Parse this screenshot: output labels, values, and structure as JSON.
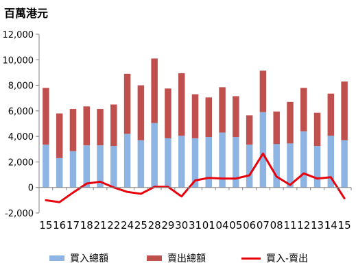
{
  "chart_data": {
    "type": "bar",
    "subtype": "stacked-bar-with-line",
    "unit_label": "百萬港元",
    "categories": [
      "15",
      "16",
      "17",
      "18",
      "21",
      "22",
      "24",
      "25",
      "28",
      "29",
      "30",
      "31",
      "01",
      "04",
      "05",
      "06",
      "07",
      "08",
      "11",
      "12",
      "13",
      "14",
      "15"
    ],
    "series": [
      {
        "name": "買入總額",
        "type": "bar",
        "color": "#8DB4E2",
        "values": [
          3350,
          2300,
          2850,
          3300,
          3300,
          3250,
          4200,
          3700,
          5050,
          3850,
          4050,
          3850,
          3950,
          4300,
          3950,
          3350,
          5900,
          3400,
          3450,
          4400,
          3250,
          4050,
          3700
        ]
      },
      {
        "name": "賣出總額",
        "type": "bar",
        "color": "#C0504D",
        "values": [
          4450,
          3500,
          3300,
          3050,
          2850,
          3250,
          4700,
          4300,
          5050,
          3900,
          4900,
          3450,
          3100,
          3550,
          3200,
          2300,
          3250,
          2550,
          3250,
          3400,
          2600,
          3300,
          4600
        ]
      },
      {
        "name": "買入-賣出",
        "type": "line",
        "color": "#E8000B",
        "values": [
          -1000,
          -1150,
          -400,
          300,
          450,
          0,
          -350,
          -500,
          50,
          50,
          -700,
          550,
          750,
          700,
          700,
          950,
          2650,
          850,
          200,
          1100,
          700,
          800,
          -850
        ]
      }
    ],
    "ylim": [
      -2000,
      12000
    ],
    "yticks": [
      "-2,000",
      "0",
      "2,000",
      "4,000",
      "6,000",
      "8,000",
      "10,000",
      "12,000"
    ],
    "grid": false,
    "legend_position": "bottom"
  },
  "colors": {
    "buy": "#8DB4E2",
    "sell": "#C0504D",
    "net": "#E8000B",
    "axis": "#808080"
  }
}
